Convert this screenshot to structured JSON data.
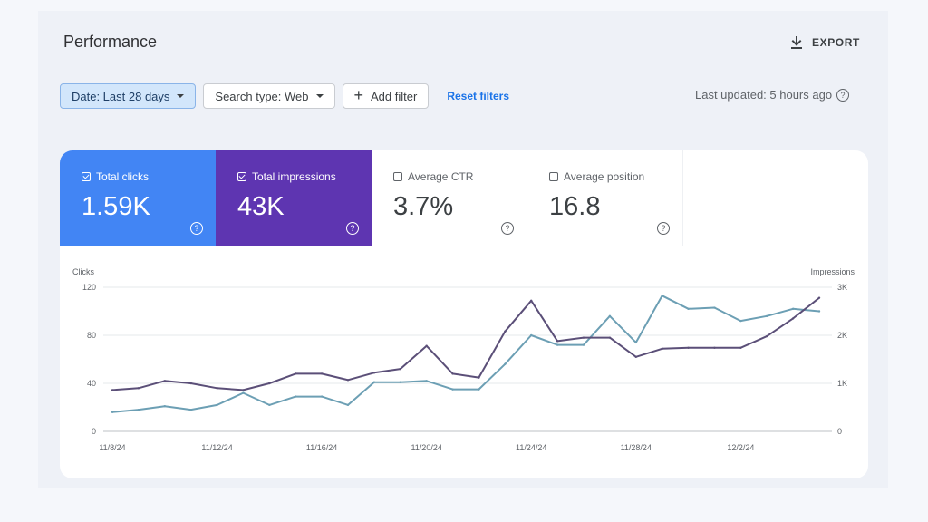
{
  "header": {
    "title": "Performance",
    "export_label": "EXPORT"
  },
  "filters": {
    "date": "Date: Last 28 days",
    "search_type": "Search type: Web",
    "add_filter": "Add filter",
    "reset": "Reset filters"
  },
  "status": {
    "last_updated": "Last updated: 5 hours ago"
  },
  "metrics": {
    "clicks": {
      "label": "Total clicks",
      "value": "1.59K",
      "checked": true
    },
    "impressions": {
      "label": "Total impressions",
      "value": "43K",
      "checked": true
    },
    "ctr": {
      "label": "Average CTR",
      "value": "3.7%",
      "checked": false
    },
    "position": {
      "label": "Average position",
      "value": "16.8",
      "checked": false
    }
  },
  "colors": {
    "clicks": "#4285f4",
    "impressions": "#5e35b1",
    "clicks_line": "#6c9fb4",
    "impressions_line": "#5b4f78"
  },
  "chart_data": {
    "type": "line",
    "y_left": {
      "label": "Clicks",
      "ticks": [
        "0",
        "40",
        "80",
        "120"
      ],
      "range": [
        0,
        120
      ]
    },
    "y_right": {
      "label": "Impressions",
      "ticks": [
        "0",
        "1K",
        "2K",
        "3K"
      ],
      "range": [
        0,
        3000
      ]
    },
    "x_ticks": [
      "11/8/24",
      "11/12/24",
      "11/16/24",
      "11/20/24",
      "11/24/24",
      "11/28/24",
      "12/2/24"
    ],
    "x": [
      "11/8",
      "11/9",
      "11/10",
      "11/11",
      "11/12",
      "11/13",
      "11/14",
      "11/15",
      "11/16",
      "11/17",
      "11/18",
      "11/19",
      "11/20",
      "11/21",
      "11/22",
      "11/23",
      "11/24",
      "11/25",
      "11/26",
      "11/27",
      "11/28",
      "11/29",
      "11/30",
      "12/1",
      "12/2",
      "12/3",
      "12/4",
      "12/5"
    ],
    "series": [
      {
        "name": "Clicks",
        "axis": "left",
        "values": [
          16,
          18,
          21,
          18,
          22,
          32,
          22,
          29,
          29,
          22,
          41,
          41,
          42,
          35,
          35,
          56,
          80,
          72,
          72,
          96,
          74,
          113,
          102,
          103,
          92,
          96,
          102,
          100
        ]
      },
      {
        "name": "Impressions",
        "axis": "right",
        "values": [
          860,
          900,
          1050,
          1000,
          900,
          860,
          1000,
          1200,
          1200,
          1070,
          1220,
          1300,
          1780,
          1200,
          1120,
          2080,
          2720,
          1880,
          1950,
          1950,
          1550,
          1720,
          1740,
          1740,
          1740,
          1980,
          2350,
          2780
        ]
      }
    ]
  }
}
